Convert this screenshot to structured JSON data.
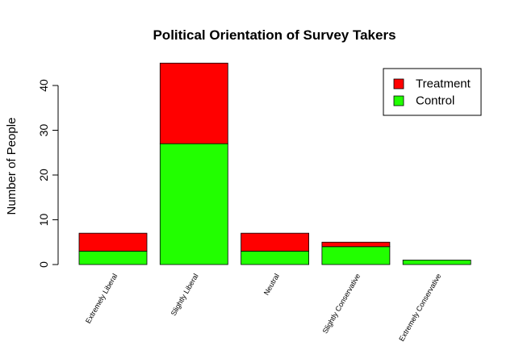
{
  "chart_data": {
    "type": "bar",
    "stacked": true,
    "title": "Political Orientation of Survey Takers",
    "xlabel": "",
    "ylabel": "Number of People",
    "categories": [
      "Extremely Liberal",
      "Slightly Liberal",
      "Neutral",
      "Slightly Conservative",
      "Extremely Conservative"
    ],
    "series": [
      {
        "name": "Control",
        "values": [
          3,
          27,
          3,
          4,
          1
        ],
        "color": "#22ff00"
      },
      {
        "name": "Treatment",
        "values": [
          4,
          18,
          4,
          1,
          0
        ],
        "color": "#ff0000"
      }
    ],
    "ylim": [
      0,
      45
    ],
    "yticks": [
      0,
      10,
      20,
      30,
      40
    ],
    "grid": false,
    "legend": {
      "placement": "top-right",
      "entries": [
        {
          "name": "Treatment",
          "color": "#ff0000"
        },
        {
          "name": "Control",
          "color": "#22ff00"
        }
      ]
    }
  }
}
